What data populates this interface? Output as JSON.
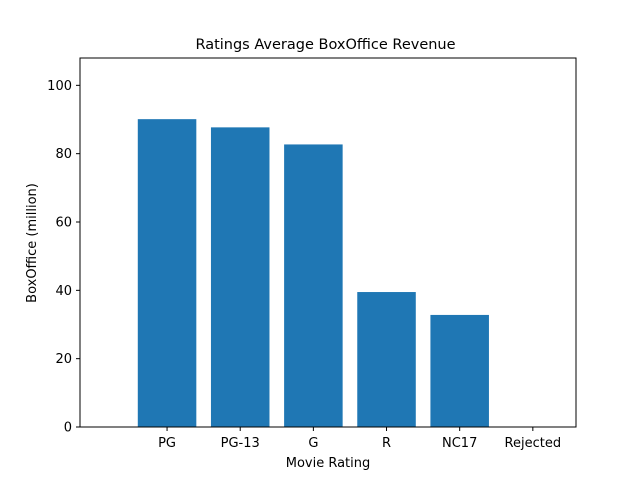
{
  "chart_data": {
    "type": "bar",
    "title": "Ratings Average BoxOffice Revenue",
    "xlabel": "Movie Rating",
    "ylabel": "BoxOffice (million)",
    "categories": [
      "PG",
      "PG-13",
      "G",
      "R",
      "NC17",
      "Rejected"
    ],
    "values": [
      90.1,
      87.7,
      82.7,
      39.5,
      32.8,
      0
    ],
    "ylim": [
      0,
      108
    ],
    "yticks": [
      0,
      20,
      40,
      60,
      80,
      100
    ],
    "bar_color": "#1f77b4",
    "grid": false,
    "legend": "none"
  }
}
